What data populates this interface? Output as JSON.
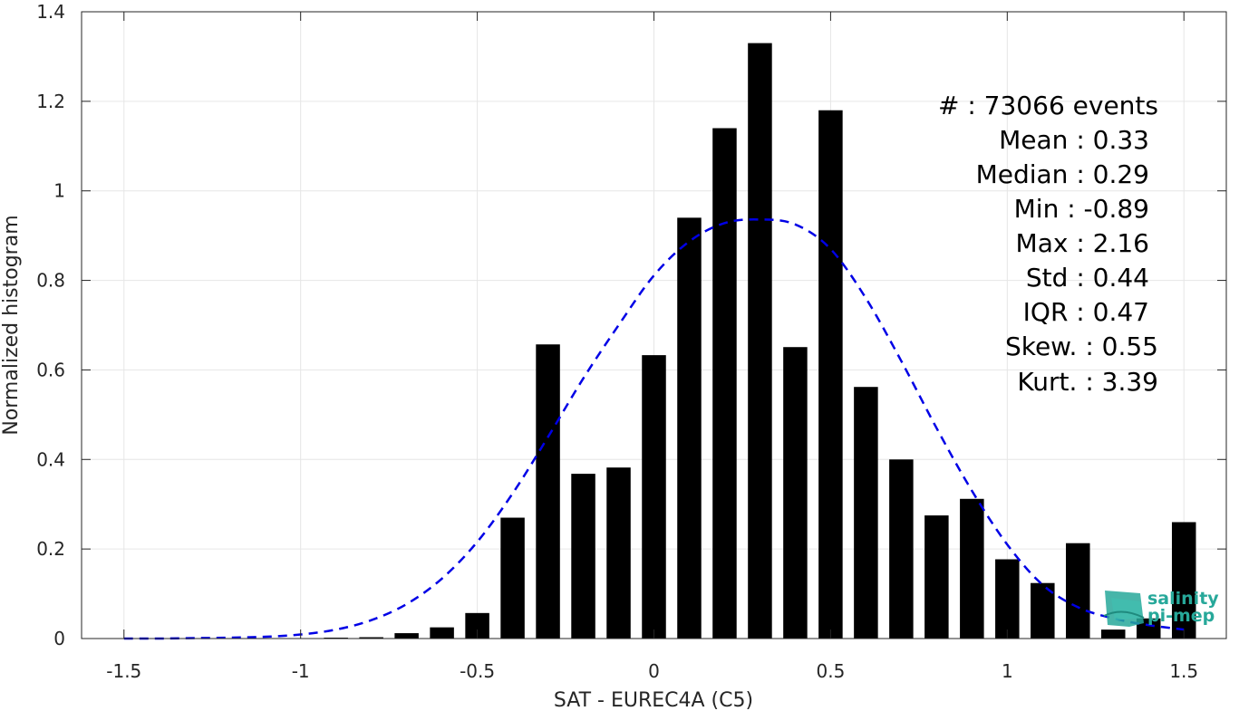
{
  "chart_data": {
    "type": "bar",
    "title": "",
    "xlabel": "SAT - EUREC4A (C5)",
    "ylabel": "Normalized histogram",
    "xlim": [
      -1.62,
      1.62
    ],
    "ylim": [
      0,
      1.4
    ],
    "grid": true,
    "x_ticks": [
      -1.5,
      -1,
      -0.5,
      0,
      0.5,
      1,
      1.5
    ],
    "x_tick_labels": [
      "-1.5",
      "-1",
      "-0.5",
      "0",
      "0.5",
      "1",
      "1.5"
    ],
    "y_ticks": [
      0,
      0.2,
      0.4,
      0.6,
      0.8,
      1,
      1.2,
      1.4
    ],
    "y_tick_labels": [
      "0",
      "0.2",
      "0.4",
      "0.6",
      "0.8",
      "1",
      "1.2",
      "1.4"
    ],
    "bar_color": "#000000",
    "bins": {
      "x": [
        -0.9,
        -0.8,
        -0.7,
        -0.6,
        -0.5,
        -0.4,
        -0.3,
        -0.2,
        -0.1,
        0.0,
        0.1,
        0.2,
        0.3,
        0.4,
        0.5,
        0.6,
        0.7,
        0.8,
        0.9,
        1.0,
        1.1,
        1.2,
        1.3,
        1.4,
        1.5
      ],
      "values": [
        0.002,
        0.003,
        0.012,
        0.025,
        0.057,
        0.27,
        0.657,
        0.368,
        0.382,
        0.633,
        0.94,
        1.14,
        1.33,
        0.651,
        1.18,
        0.562,
        0.4,
        0.275,
        0.312,
        0.177,
        0.124,
        0.213,
        0.02,
        0.045,
        0.26
      ]
    },
    "series": [
      {
        "type": "line",
        "style": "dashed",
        "color": "#0000e6",
        "x": [
          -1.5,
          -1.4,
          -1.3,
          -1.2,
          -1.1,
          -1.0,
          -0.9,
          -0.8,
          -0.7,
          -0.6,
          -0.5,
          -0.4,
          -0.3,
          -0.2,
          -0.1,
          0.0,
          0.1,
          0.2,
          0.3,
          0.4,
          0.5,
          0.6,
          0.7,
          0.8,
          0.9,
          1.0,
          1.1,
          1.2,
          1.3,
          1.4,
          1.5
        ],
        "values": [
          0.0,
          0.0,
          0.001,
          0.002,
          0.004,
          0.009,
          0.02,
          0.041,
          0.077,
          0.134,
          0.216,
          0.324,
          0.45,
          0.581,
          0.7,
          0.811,
          0.887,
          0.928,
          0.936,
          0.925,
          0.87,
          0.76,
          0.62,
          0.47,
          0.33,
          0.21,
          0.12,
          0.07,
          0.045,
          0.03,
          0.02
        ]
      }
    ],
    "annotations": [
      "#  : 73066 events",
      "Mean : 0.33",
      "Median : 0.29",
      "Min : -0.89",
      "Max : 2.16",
      "Std : 0.44",
      "IQR : 0.47",
      "Skew. : 0.55",
      "Kurt. : 3.39"
    ]
  },
  "logo": {
    "line1": "salinity",
    "line2": "pi-mep",
    "color": "#27a89a"
  }
}
